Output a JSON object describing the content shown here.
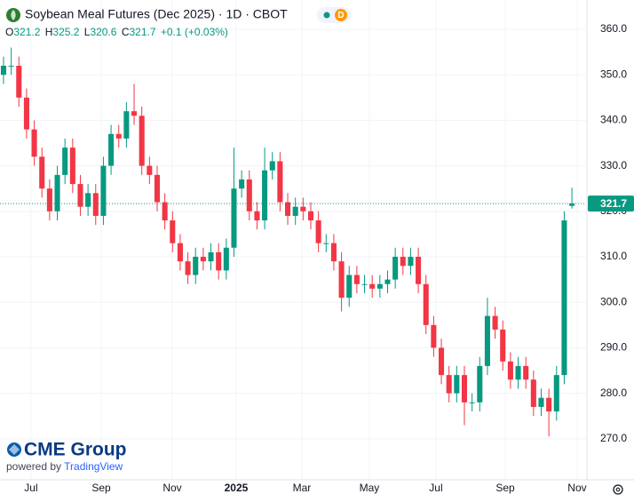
{
  "chart_data": {
    "type": "candlestick",
    "title": "Soybean Meal Futures (Dec 2025) · 1D · CBOT",
    "badge": "D",
    "ohlc_letters": [
      "O",
      "H",
      "L",
      "C"
    ],
    "change": "+0.1 (+0.03%)",
    "open": [
      350,
      352,
      352,
      345,
      338,
      332,
      325,
      320,
      328,
      334,
      326,
      321,
      324,
      319,
      330,
      337,
      336,
      342,
      341,
      330,
      328,
      322,
      318,
      313,
      309,
      306,
      310,
      309,
      311,
      307,
      312,
      325,
      327,
      320,
      318,
      329,
      331,
      322,
      319,
      321,
      320,
      318,
      313,
      313,
      309,
      301,
      306,
      304,
      304,
      303,
      304,
      305,
      310,
      308,
      310,
      304,
      295,
      290,
      284,
      280,
      284,
      278,
      278,
      286,
      297,
      294,
      287,
      283,
      286,
      283,
      277,
      279,
      276,
      284,
      321.2
    ],
    "high": [
      354,
      356,
      354,
      347,
      340,
      334,
      327,
      330,
      336,
      336,
      328,
      326,
      326,
      332,
      339,
      339,
      344,
      348,
      343,
      332,
      330,
      324,
      320,
      315,
      311,
      312,
      312,
      313,
      313,
      314,
      334,
      329,
      329,
      322,
      334,
      333,
      333,
      324,
      323,
      323,
      322,
      320,
      315,
      315,
      311,
      308,
      308,
      306,
      306,
      306,
      307,
      312,
      312,
      312,
      312,
      306,
      297,
      292,
      286,
      286,
      286,
      280,
      288,
      301,
      299,
      296,
      289,
      288,
      288,
      285,
      281,
      281,
      286,
      320,
      325.2
    ],
    "low": [
      348,
      350,
      343,
      336,
      330,
      323,
      318,
      318,
      326,
      324,
      319,
      319,
      317,
      317,
      328,
      334,
      334,
      339,
      328,
      326,
      320,
      316,
      311,
      307,
      304,
      304,
      307,
      307,
      305,
      305,
      310,
      323,
      318,
      316,
      316,
      327,
      320,
      317,
      317,
      318,
      316,
      311,
      311,
      307,
      298,
      299,
      302,
      302,
      301,
      301,
      302,
      303,
      306,
      306,
      302,
      293,
      288,
      282,
      278,
      278,
      273,
      276,
      276,
      284,
      292,
      285,
      281,
      281,
      281,
      275,
      275,
      270.5,
      274,
      282,
      320.6
    ],
    "close": [
      352,
      352,
      345,
      338,
      332,
      325,
      320,
      328,
      334,
      326,
      321,
      324,
      319,
      330,
      337,
      336,
      342,
      341,
      330,
      328,
      322,
      318,
      313,
      309,
      306,
      310,
      309,
      311,
      307,
      312,
      325,
      327,
      320,
      318,
      329,
      331,
      322,
      319,
      321,
      320,
      318,
      313,
      313,
      309,
      301,
      306,
      304,
      304,
      303,
      304,
      305,
      310,
      308,
      310,
      304,
      295,
      290,
      284,
      280,
      284,
      278,
      278,
      286,
      297,
      294,
      287,
      283,
      286,
      283,
      277,
      279,
      276,
      284,
      318,
      321.7
    ],
    "up_color": "#089981",
    "down_color": "#f23645",
    "xlim": [
      -0.46,
      75.84
    ],
    "xticks": [
      {
        "value": 3.58,
        "label": "Jul"
      },
      {
        "value": 12.72,
        "label": "Sep"
      },
      {
        "value": 21.97,
        "label": "Nov"
      },
      {
        "value": 30.29,
        "label": "2025"
      },
      {
        "value": 38.84,
        "label": "Mar"
      },
      {
        "value": 47.63,
        "label": "May"
      },
      {
        "value": 56.3,
        "label": "Jul"
      },
      {
        "value": 65.32,
        "label": "Sep"
      },
      {
        "value": 74.68,
        "label": "Nov"
      }
    ],
    "ylim": [
      260.98,
      366.45
    ],
    "yticks": [
      {
        "value": 270,
        "label": "270.0"
      },
      {
        "value": 280,
        "label": "280.0"
      },
      {
        "value": 290,
        "label": "290.0"
      },
      {
        "value": 300,
        "label": "300.0"
      },
      {
        "value": 310,
        "label": "310.0"
      },
      {
        "value": 320,
        "label": "320.0"
      },
      {
        "value": 330,
        "label": "330.0"
      },
      {
        "value": 340,
        "label": "340.0"
      },
      {
        "value": 350,
        "label": "350.0"
      },
      {
        "value": 360,
        "label": "360.0"
      }
    ],
    "grid": true
  },
  "branding": {
    "logo": "CME Group",
    "powered_by": "powered by",
    "platform": "TradingView"
  }
}
